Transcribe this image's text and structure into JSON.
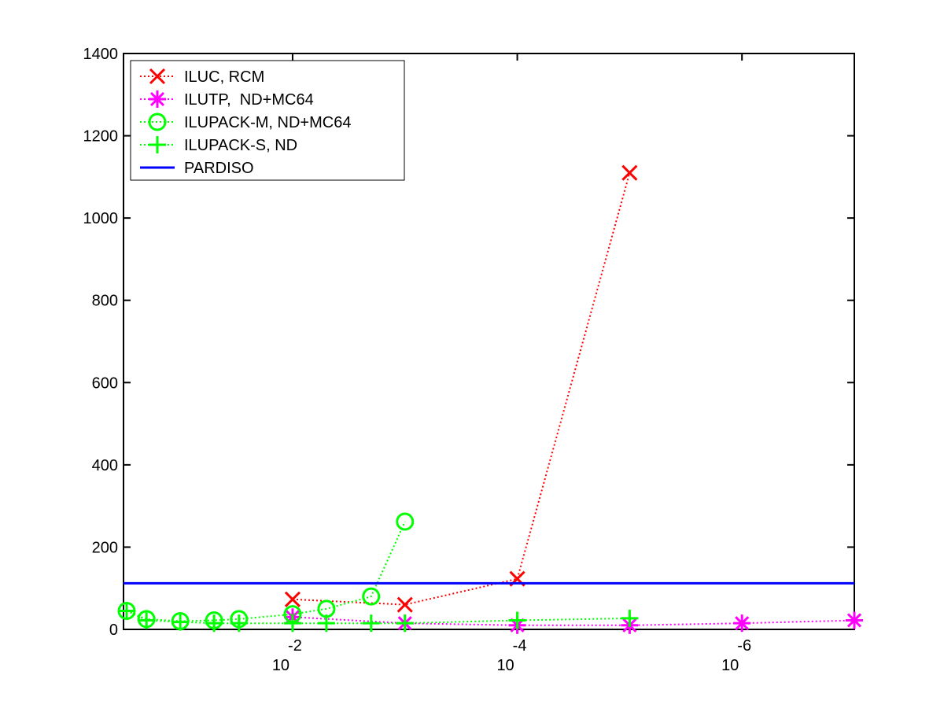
{
  "chart_data": {
    "type": "line",
    "title": "",
    "xlabel": "",
    "ylabel": "",
    "x_scale": "log",
    "x_reversed": true,
    "xlim": [
      0.32,
      1e-07
    ],
    "ylim": [
      0,
      1400
    ],
    "y_ticks": [
      0,
      200,
      400,
      600,
      800,
      1000,
      1200,
      1400
    ],
    "x_ticks": [
      {
        "value": 0.01,
        "base": "10",
        "exponent": "-2"
      },
      {
        "value": 0.0001,
        "base": "10",
        "exponent": "-4"
      },
      {
        "value": 1e-06,
        "base": "10",
        "exponent": "-6"
      }
    ],
    "legend_position": "top-left",
    "series": [
      {
        "name": "ILUC, RCM",
        "color": "#ff0000",
        "marker": "x",
        "line": "dotted",
        "x": [
          0.01,
          0.001,
          0.0001,
          1e-05
        ],
        "y": [
          73,
          60,
          123,
          1110
        ]
      },
      {
        "name": "ILUTP,  ND+MC64",
        "color": "#ff00ff",
        "marker": "asterisk",
        "line": "dotted",
        "x": [
          0.01,
          0.001,
          0.0001,
          1e-05,
          1e-06,
          1e-07
        ],
        "y": [
          30,
          15,
          10,
          10,
          15,
          22
        ]
      },
      {
        "name": "ILUPACK-M, ND+MC64",
        "color": "#00ff00",
        "marker": "circle",
        "line": "dotted",
        "x": [
          0.3,
          0.2,
          0.1,
          0.05,
          0.03,
          0.01,
          0.005,
          0.002,
          0.001
        ],
        "y": [
          45,
          25,
          20,
          22,
          25,
          37,
          50,
          80,
          262
        ]
      },
      {
        "name": "ILUPACK-S, ND",
        "color": "#00ff00",
        "marker": "plus",
        "line": "dotted",
        "x": [
          0.3,
          0.2,
          0.1,
          0.05,
          0.03,
          0.01,
          0.005,
          0.002,
          0.001,
          0.0001,
          1e-05
        ],
        "y": [
          45,
          22,
          18,
          15,
          15,
          15,
          15,
          15,
          15,
          22,
          27
        ]
      },
      {
        "name": "PARDISO",
        "color": "#0000ff",
        "marker": "none",
        "line": "solid",
        "x": [
          0.32,
          1e-07
        ],
        "y": [
          112,
          112
        ]
      }
    ]
  }
}
